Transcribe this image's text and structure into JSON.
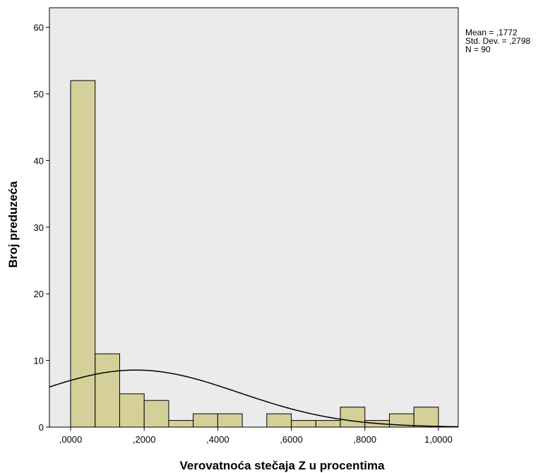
{
  "chart_data": {
    "type": "bar",
    "subtype": "histogram",
    "xlabel": "Verovatnoća stečaja Z u procentima",
    "ylabel": "Broj preduzeća",
    "xlim": [
      -0.05,
      1.05
    ],
    "ylim": [
      0,
      65
    ],
    "x_ticks": [
      0,
      0.2,
      0.4,
      0.6,
      0.8,
      1.0
    ],
    "x_tick_labels": [
      ",0000",
      ",2000",
      ",4000",
      ",6000",
      ",8000",
      "1,0000"
    ],
    "y_ticks": [
      0,
      10,
      20,
      30,
      40,
      50,
      60
    ],
    "y_tick_labels": [
      "0",
      "10",
      "20",
      "30",
      "40",
      "50",
      "60"
    ],
    "bin_width": 0.0667,
    "bin_starts": [
      0.0,
      0.0667,
      0.1333,
      0.2,
      0.2667,
      0.3333,
      0.4,
      0.4667,
      0.5333,
      0.6,
      0.6667,
      0.7333,
      0.8,
      0.8667,
      0.9333
    ],
    "values": [
      52,
      11,
      5,
      4,
      1,
      2,
      2,
      0,
      2,
      1,
      1,
      3,
      1,
      2,
      3
    ],
    "normal_curve": {
      "mean": 0.1772,
      "std": 0.2798,
      "n": 90
    },
    "bar_color": "#d5d09a",
    "plot_background": "#ebebeb",
    "grid": false
  },
  "stats": {
    "mean": "Mean = ,1772",
    "std_dev": "Std. Dev. = ,2798",
    "n": "N = 90"
  }
}
